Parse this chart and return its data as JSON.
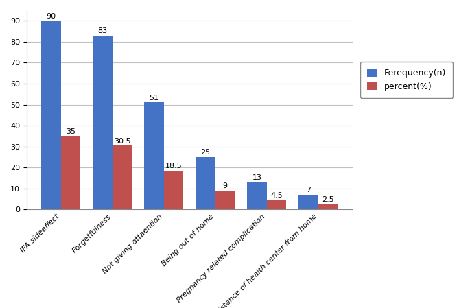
{
  "categories": [
    "IFA sideeffect",
    "Forgetfulness",
    "Not giving attaention",
    "Being out of home",
    "Pregnancy related complication",
    "Distance of health center from home"
  ],
  "frequency": [
    90,
    83,
    51,
    25,
    13,
    7
  ],
  "percent": [
    35,
    30.5,
    18.5,
    9,
    4.5,
    2.5
  ],
  "bar_color_freq": "#4472C4",
  "bar_color_pct": "#C0504D",
  "legend_freq": "Ferequency(n)",
  "legend_pct": "percent(%)",
  "ylim": [
    0,
    95
  ],
  "yticks": [
    0,
    10,
    20,
    30,
    40,
    50,
    60,
    70,
    80,
    90
  ],
  "bar_width": 0.38,
  "figure_width": 6.85,
  "figure_height": 4.49,
  "dpi": 100,
  "background_color": "#ffffff",
  "grid_color": "#c0c0c0",
  "annotation_fontsize": 8,
  "tick_fontsize": 8,
  "legend_fontsize": 9
}
